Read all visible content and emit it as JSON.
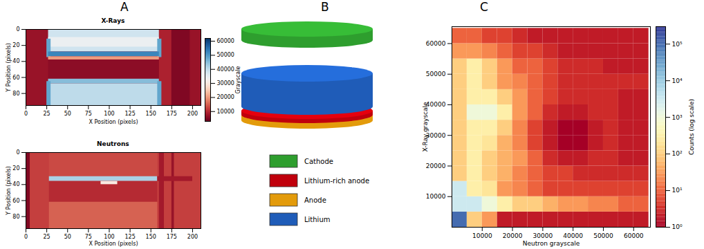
{
  "panel_labels": [
    "A",
    "B",
    "C"
  ],
  "chart_data": [
    {
      "type": "heatmap",
      "title": "X-Rays",
      "xlabel": "X Position (pixels)",
      "ylabel": "Y Position (pixels)",
      "xlim": [
        0,
        210
      ],
      "xticks": [
        0,
        25,
        50,
        75,
        100,
        125,
        150,
        175,
        200
      ],
      "ylim": [
        95,
        0
      ],
      "yticks": [
        0,
        20,
        40,
        60,
        80
      ],
      "color": "RdBu",
      "colorbar": {
        "label": "Grayscale",
        "lim": [
          3000,
          62000
        ],
        "ticks": [
          10000,
          20000,
          30000,
          40000,
          50000,
          60000
        ]
      },
      "cells": [
        {
          "x1": 0,
          "x2": 210,
          "y1": 0,
          "y2": 95,
          "value": 7000
        },
        {
          "x1": 160,
          "x2": 175,
          "y1": 0,
          "y2": 95,
          "value": 9000
        },
        {
          "x1": 175,
          "x2": 197,
          "y1": 0,
          "y2": 95,
          "value": 5000
        },
        {
          "x1": 27,
          "x2": 160,
          "y1": 0,
          "y2": 28,
          "value": 38000
        },
        {
          "x1": 27,
          "x2": 160,
          "y1": 10,
          "y2": 22,
          "value": 34000
        },
        {
          "x1": 25,
          "x2": 30,
          "y1": 12,
          "y2": 35,
          "value": 48000
        },
        {
          "x1": 158,
          "x2": 163,
          "y1": 12,
          "y2": 35,
          "value": 48000
        },
        {
          "x1": 27,
          "x2": 160,
          "y1": 28,
          "y2": 34,
          "value": 52000
        },
        {
          "x1": 27,
          "x2": 160,
          "y1": 34,
          "y2": 38,
          "value": 20000
        },
        {
          "x1": 27,
          "x2": 160,
          "y1": 38,
          "y2": 62,
          "value": 6000
        },
        {
          "x1": 27,
          "x2": 160,
          "y1": 62,
          "y2": 68,
          "value": 45000
        },
        {
          "x1": 27,
          "x2": 160,
          "y1": 68,
          "y2": 95,
          "value": 40000
        },
        {
          "x1": 25,
          "x2": 30,
          "y1": 65,
          "y2": 95,
          "value": 48000
        },
        {
          "x1": 158,
          "x2": 163,
          "y1": 65,
          "y2": 95,
          "value": 48000
        }
      ]
    },
    {
      "type": "heatmap",
      "title": "Neutrons",
      "xlabel": "X Position (pixels)",
      "ylabel": "Y Position (pixels)",
      "xlim": [
        0,
        210
      ],
      "xticks": [
        0,
        25,
        50,
        75,
        100,
        125,
        150,
        175,
        200
      ],
      "ylim": [
        95,
        0
      ],
      "yticks": [
        0,
        20,
        40,
        60,
        80
      ],
      "color": "RdBu",
      "cells": [
        {
          "x1": 0,
          "x2": 210,
          "y1": 0,
          "y2": 95,
          "value": 12000
        },
        {
          "x1": 0,
          "x2": 5,
          "y1": 0,
          "y2": 95,
          "value": 5000
        },
        {
          "x1": 160,
          "x2": 166,
          "y1": 0,
          "y2": 95,
          "value": 8000
        },
        {
          "x1": 175,
          "x2": 178,
          "y1": 0,
          "y2": 95,
          "value": 7000
        },
        {
          "x1": 28,
          "x2": 158,
          "y1": 0,
          "y2": 30,
          "value": 13000
        },
        {
          "x1": 28,
          "x2": 158,
          "y1": 30,
          "y2": 36,
          "value": 42000
        },
        {
          "x1": 158,
          "x2": 200,
          "y1": 30,
          "y2": 36,
          "value": 8000
        },
        {
          "x1": 28,
          "x2": 158,
          "y1": 36,
          "y2": 62,
          "value": 10000
        },
        {
          "x1": 90,
          "x2": 110,
          "y1": 36,
          "y2": 40,
          "value": 30000
        },
        {
          "x1": 28,
          "x2": 158,
          "y1": 62,
          "y2": 95,
          "value": 15000
        }
      ]
    },
    {
      "type": "3d_render",
      "series": [
        {
          "name": "Cathode",
          "color": "#2e9e2e"
        },
        {
          "name": "Lithium-rich anode",
          "color": "#c0000c"
        },
        {
          "name": "Anode",
          "color": "#e39b0b"
        },
        {
          "name": "Lithium",
          "color": "#1f5cb8"
        }
      ]
    },
    {
      "type": "hist2d",
      "xlabel": "Neutron grayscale",
      "ylabel": "X-Ray grayscale",
      "log": true,
      "color": "RdYlBu",
      "xlim": [
        0,
        65535
      ],
      "ylim": [
        0,
        65535
      ],
      "xticks": [
        10000,
        20000,
        30000,
        40000,
        50000,
        60000
      ],
      "yticks": [
        10000,
        20000,
        30000,
        40000,
        50000,
        60000
      ],
      "x_bins": [
        0,
        5000,
        10000,
        15000,
        20000,
        25000,
        30000,
        35000,
        40000,
        45000,
        50000,
        55000,
        60000,
        65000
      ],
      "y_bins": [
        0,
        5000,
        10000,
        15000,
        20000,
        25000,
        30000,
        35000,
        40000,
        45000,
        50000,
        55000,
        60000,
        65000
      ],
      "counts": [
        [
          100000,
          100,
          30,
          2,
          2,
          2,
          2,
          2,
          2,
          2,
          2,
          2,
          2
        ],
        [
          3000,
          3000,
          1000,
          300,
          100,
          100,
          50,
          30,
          30,
          20,
          20,
          10,
          10
        ],
        [
          3000,
          300,
          200,
          30,
          20,
          10,
          5,
          5,
          5,
          5,
          5,
          5,
          5
        ],
        [
          100,
          300,
          100,
          50,
          20,
          10,
          5,
          5,
          3,
          3,
          3,
          3,
          3
        ],
        [
          100,
          300,
          100,
          50,
          30,
          10,
          3,
          2,
          2,
          3,
          3,
          2,
          2
        ],
        [
          100,
          300,
          200,
          50,
          20,
          5,
          2,
          1,
          1,
          2,
          3,
          2,
          2
        ],
        [
          100,
          300,
          300,
          100,
          20,
          5,
          2,
          1,
          1,
          2,
          3,
          2,
          2
        ],
        [
          100,
          1000,
          1000,
          300,
          30,
          10,
          3,
          2,
          2,
          3,
          3,
          2,
          2
        ],
        [
          100,
          300,
          300,
          100,
          30,
          10,
          5,
          3,
          3,
          3,
          3,
          2,
          2
        ],
        [
          100,
          300,
          100,
          30,
          20,
          10,
          5,
          3,
          3,
          3,
          3,
          3,
          3
        ],
        [
          100,
          300,
          100,
          30,
          10,
          10,
          5,
          3,
          3,
          3,
          2,
          2,
          2
        ],
        [
          30,
          30,
          20,
          10,
          5,
          5,
          3,
          2,
          2,
          2,
          2,
          2,
          2
        ],
        [
          10,
          10,
          5,
          5,
          3,
          2,
          2,
          2,
          2,
          2,
          2,
          2,
          2
        ]
      ],
      "colorbar": {
        "label": "Counts (log scale)",
        "lim": [
          1,
          300000
        ],
        "ticks": [
          {
            "value": 1,
            "label": "10⁰"
          },
          {
            "value": 10,
            "label": "10¹"
          },
          {
            "value": 100,
            "label": "10²"
          },
          {
            "value": 1000,
            "label": "10³"
          },
          {
            "value": 10000,
            "label": "10⁴"
          },
          {
            "value": 100000,
            "label": "10⁵"
          }
        ]
      }
    }
  ]
}
